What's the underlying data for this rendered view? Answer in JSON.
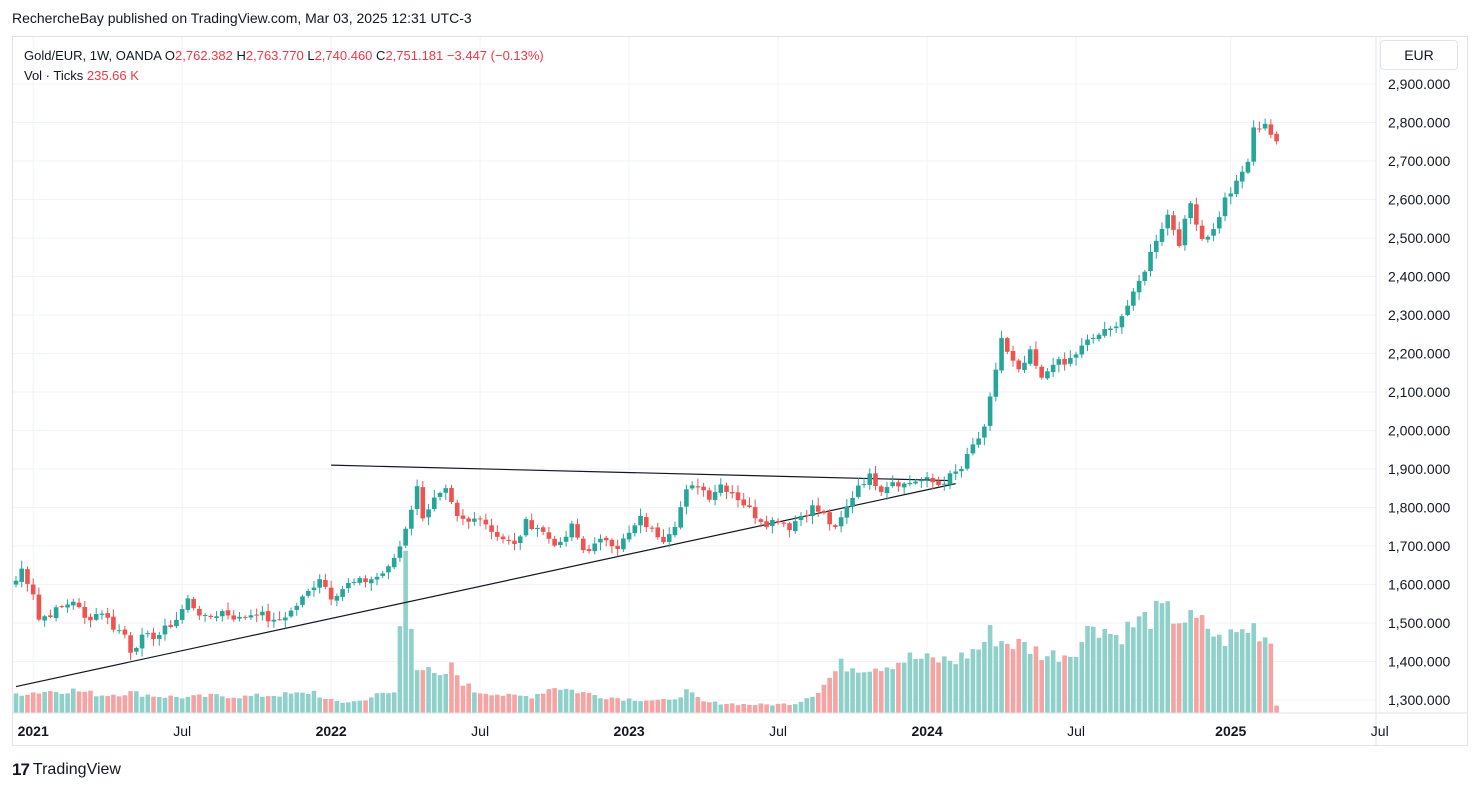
{
  "header": {
    "publisher_text": "RechercheBay published on TradingView.com, Mar 03, 2025 12:31 UTC-3"
  },
  "legend": {
    "symbol": "Gold/EUR, 1W, OANDA",
    "o_label": "O",
    "o_value": "2,762.382",
    "h_label": "H",
    "h_value": "2,763.770",
    "l_label": "L",
    "l_value": "2,740.460",
    "c_label": "C",
    "c_value": "2,751.181",
    "change": "−3.447 (−0.13%)",
    "volume_label": "Vol · Ticks",
    "volume_value": "235.66 K"
  },
  "currency": "EUR",
  "footer": {
    "brand_mark": "17",
    "brand_text": "TradingView"
  },
  "colors": {
    "up": "#26a69a",
    "down": "#ef5350",
    "vol_up": "#8fd1ca",
    "vol_down": "#f5a3a3",
    "grid": "#f0f3fa",
    "text": "#131722"
  },
  "chart_data": {
    "type": "candlestick",
    "ylim": [
      1270,
      2960
    ],
    "y_ticks": [
      "1,300.000",
      "1,400.000",
      "1,500.000",
      "1,600.000",
      "1,700.000",
      "1,800.000",
      "1,900.000",
      "2,000.000",
      "2,100.000",
      "2,200.000",
      "2,300.000",
      "2,400.000",
      "2,500.000",
      "2,600.000",
      "2,700.000",
      "2,800.000",
      "2,900.000"
    ],
    "y_tick_values": [
      1300,
      1400,
      1500,
      1600,
      1700,
      1800,
      1900,
      2000,
      2100,
      2200,
      2300,
      2400,
      2500,
      2600,
      2700,
      2800,
      2900
    ],
    "x_ticks": [
      {
        "label": "2021",
        "week": 3,
        "bold": true
      },
      {
        "label": "Jul",
        "week": 29,
        "bold": false
      },
      {
        "label": "2022",
        "week": 55,
        "bold": true
      },
      {
        "label": "Jul",
        "week": 81,
        "bold": false
      },
      {
        "label": "2023",
        "week": 107,
        "bold": true
      },
      {
        "label": "Jul",
        "week": 133,
        "bold": false
      },
      {
        "label": "2024",
        "week": 159,
        "bold": true
      },
      {
        "label": "Jul",
        "week": 185,
        "bold": false
      },
      {
        "label": "2025",
        "week": 212,
        "bold": true
      },
      {
        "label": "Jul",
        "week": 238,
        "bold": false
      }
    ],
    "close_anchors": [
      [
        0,
        1610
      ],
      [
        1,
        1640
      ],
      [
        3,
        1580
      ],
      [
        4,
        1510
      ],
      [
        8,
        1540
      ],
      [
        10,
        1560
      ],
      [
        12,
        1510
      ],
      [
        15,
        1530
      ],
      [
        17,
        1490
      ],
      [
        19,
        1470
      ],
      [
        20,
        1430
      ],
      [
        22,
        1460
      ],
      [
        25,
        1470
      ],
      [
        28,
        1510
      ],
      [
        30,
        1560
      ],
      [
        33,
        1510
      ],
      [
        36,
        1530
      ],
      [
        39,
        1510
      ],
      [
        42,
        1530
      ],
      [
        45,
        1500
      ],
      [
        48,
        1530
      ],
      [
        51,
        1580
      ],
      [
        53,
        1620
      ],
      [
        55,
        1570
      ],
      [
        58,
        1600
      ],
      [
        61,
        1610
      ],
      [
        63,
        1620
      ],
      [
        65,
        1640
      ],
      [
        67,
        1700
      ],
      [
        68,
        1750
      ],
      [
        69,
        1800
      ],
      [
        70,
        1850
      ],
      [
        71,
        1780
      ],
      [
        73,
        1820
      ],
      [
        75,
        1840
      ],
      [
        77,
        1770
      ],
      [
        79,
        1760
      ],
      [
        81,
        1780
      ],
      [
        83,
        1740
      ],
      [
        85,
        1720
      ],
      [
        87,
        1700
      ],
      [
        89,
        1760
      ],
      [
        91,
        1750
      ],
      [
        93,
        1720
      ],
      [
        95,
        1700
      ],
      [
        97,
        1750
      ],
      [
        99,
        1690
      ],
      [
        101,
        1700
      ],
      [
        103,
        1720
      ],
      [
        105,
        1700
      ],
      [
        107,
        1730
      ],
      [
        109,
        1770
      ],
      [
        111,
        1740
      ],
      [
        113,
        1720
      ],
      [
        115,
        1760
      ],
      [
        117,
        1840
      ],
      [
        119,
        1860
      ],
      [
        121,
        1830
      ],
      [
        123,
        1860
      ],
      [
        125,
        1840
      ],
      [
        127,
        1810
      ],
      [
        129,
        1780
      ],
      [
        131,
        1760
      ],
      [
        133,
        1770
      ],
      [
        135,
        1750
      ],
      [
        137,
        1780
      ],
      [
        139,
        1800
      ],
      [
        141,
        1780
      ],
      [
        143,
        1740
      ],
      [
        145,
        1800
      ],
      [
        147,
        1860
      ],
      [
        149,
        1880
      ],
      [
        151,
        1850
      ],
      [
        153,
        1870
      ],
      [
        155,
        1860
      ],
      [
        157,
        1870
      ],
      [
        159,
        1870
      ],
      [
        161,
        1860
      ],
      [
        163,
        1880
      ],
      [
        165,
        1900
      ],
      [
        167,
        1960
      ],
      [
        169,
        2000
      ],
      [
        170,
        2080
      ],
      [
        171,
        2160
      ],
      [
        172,
        2240
      ],
      [
        173,
        2200
      ],
      [
        175,
        2150
      ],
      [
        177,
        2200
      ],
      [
        179,
        2130
      ],
      [
        181,
        2180
      ],
      [
        183,
        2170
      ],
      [
        185,
        2200
      ],
      [
        187,
        2230
      ],
      [
        189,
        2250
      ],
      [
        191,
        2260
      ],
      [
        193,
        2300
      ],
      [
        195,
        2350
      ],
      [
        197,
        2420
      ],
      [
        199,
        2500
      ],
      [
        201,
        2560
      ],
      [
        203,
        2490
      ],
      [
        205,
        2590
      ],
      [
        207,
        2500
      ],
      [
        209,
        2520
      ],
      [
        211,
        2600
      ],
      [
        213,
        2640
      ],
      [
        215,
        2700
      ],
      [
        216,
        2780
      ],
      [
        218,
        2800
      ],
      [
        219,
        2770
      ],
      [
        220,
        2751
      ]
    ],
    "volume_range": [
      0,
      1000
    ],
    "volume_anchors": [
      [
        0,
        80
      ],
      [
        5,
        90
      ],
      [
        10,
        95
      ],
      [
        15,
        75
      ],
      [
        20,
        85
      ],
      [
        25,
        70
      ],
      [
        30,
        65
      ],
      [
        35,
        72
      ],
      [
        40,
        68
      ],
      [
        45,
        75
      ],
      [
        50,
        80
      ],
      [
        52,
        90
      ],
      [
        54,
        55
      ],
      [
        57,
        45
      ],
      [
        60,
        50
      ],
      [
        63,
        75
      ],
      [
        66,
        85
      ],
      [
        67,
        350
      ],
      [
        68,
        700
      ],
      [
        69,
        400
      ],
      [
        70,
        200
      ],
      [
        72,
        170
      ],
      [
        74,
        140
      ],
      [
        76,
        190
      ],
      [
        78,
        130
      ],
      [
        80,
        90
      ],
      [
        83,
        85
      ],
      [
        86,
        70
      ],
      [
        90,
        70
      ],
      [
        94,
        110
      ],
      [
        98,
        90
      ],
      [
        102,
        70
      ],
      [
        106,
        60
      ],
      [
        110,
        55
      ],
      [
        114,
        50
      ],
      [
        117,
        90
      ],
      [
        120,
        45
      ],
      [
        124,
        40
      ],
      [
        128,
        35
      ],
      [
        132,
        35
      ],
      [
        136,
        40
      ],
      [
        140,
        90
      ],
      [
        144,
        200
      ],
      [
        148,
        190
      ],
      [
        152,
        200
      ],
      [
        156,
        230
      ],
      [
        160,
        220
      ],
      [
        164,
        220
      ],
      [
        168,
        270
      ],
      [
        170,
        330
      ],
      [
        172,
        300
      ],
      [
        176,
        280
      ],
      [
        180,
        240
      ],
      [
        184,
        250
      ],
      [
        186,
        300
      ],
      [
        188,
        380
      ],
      [
        192,
        320
      ],
      [
        196,
        380
      ],
      [
        200,
        420
      ],
      [
        204,
        390
      ],
      [
        208,
        360
      ],
      [
        210,
        300
      ],
      [
        213,
        330
      ],
      [
        216,
        360
      ],
      [
        219,
        300
      ],
      [
        220,
        35
      ]
    ],
    "trendlines": [
      {
        "name": "descending-resistance",
        "from": [
          55,
          1910
        ],
        "to": [
          163,
          1870
        ]
      },
      {
        "name": "ascending-support",
        "from": [
          0,
          1335
        ],
        "to": [
          164,
          1862
        ]
      }
    ]
  }
}
